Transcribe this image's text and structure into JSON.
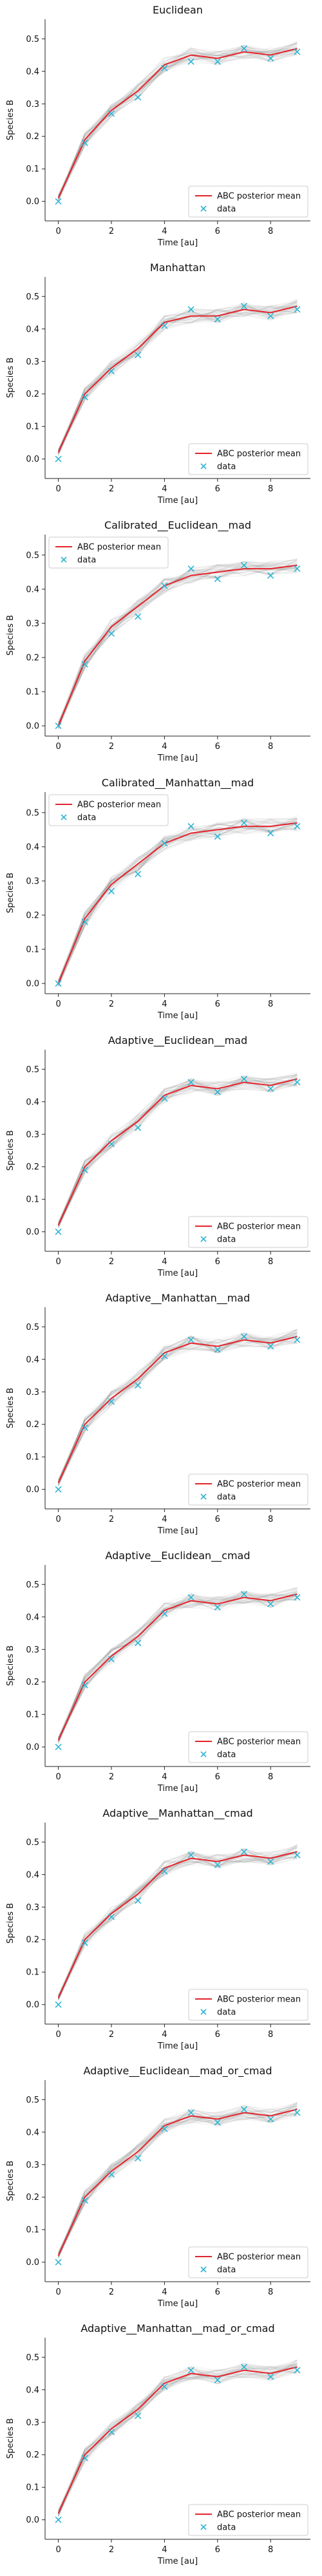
{
  "figure": {
    "background": "#ffffff"
  },
  "style": {
    "posterior_color": "#e3242b",
    "data_color": "#2bb5d3",
    "sample_color": "#808080",
    "axis_color": "#222222",
    "legend_border": "#cccccc"
  },
  "chart_data": [
    {
      "type": "line",
      "title": "Euclidean",
      "xlabel": "Time [au]",
      "ylabel": "Species B",
      "xlim": [
        -0.5,
        9.5
      ],
      "ylim": [
        -0.06,
        0.56
      ],
      "xticks": [
        0,
        2,
        4,
        6,
        8
      ],
      "yticks": [
        0.0,
        0.1,
        0.2,
        0.3,
        0.4,
        0.5
      ],
      "legend_loc": "bottom-right",
      "legend": [
        "ABC posterior mean",
        "data"
      ],
      "series": [
        {
          "name": "ABC posterior mean",
          "kind": "line",
          "x": [
            0,
            1,
            2,
            3,
            4,
            5,
            6,
            7,
            8,
            9
          ],
          "y": [
            0.01,
            0.19,
            0.28,
            0.34,
            0.42,
            0.45,
            0.44,
            0.46,
            0.45,
            0.47
          ]
        },
        {
          "name": "data",
          "kind": "marker",
          "x": [
            0,
            1,
            2,
            3,
            4,
            5,
            6,
            7,
            8,
            9
          ],
          "y": [
            0.0,
            0.18,
            0.27,
            0.32,
            0.41,
            0.43,
            0.43,
            0.47,
            0.44,
            0.46
          ]
        }
      ]
    },
    {
      "type": "line",
      "title": "Manhattan",
      "xlabel": "Time [au]",
      "ylabel": "Species B",
      "xlim": [
        -0.5,
        9.5
      ],
      "ylim": [
        -0.06,
        0.56
      ],
      "xticks": [
        0,
        2,
        4,
        6,
        8
      ],
      "yticks": [
        0.0,
        0.1,
        0.2,
        0.3,
        0.4,
        0.5
      ],
      "legend_loc": "bottom-right",
      "legend": [
        "ABC posterior mean",
        "data"
      ],
      "series": [
        {
          "name": "ABC posterior mean",
          "kind": "line",
          "x": [
            0,
            1,
            2,
            3,
            4,
            5,
            6,
            7,
            8,
            9
          ],
          "y": [
            0.02,
            0.2,
            0.28,
            0.34,
            0.42,
            0.44,
            0.44,
            0.46,
            0.45,
            0.47
          ]
        },
        {
          "name": "data",
          "kind": "marker",
          "x": [
            0,
            1,
            2,
            3,
            4,
            5,
            6,
            7,
            8,
            9
          ],
          "y": [
            0.0,
            0.19,
            0.27,
            0.32,
            0.41,
            0.46,
            0.43,
            0.47,
            0.44,
            0.46
          ]
        }
      ]
    },
    {
      "type": "line",
      "title": "Calibrated__Euclidean__mad",
      "xlabel": "Time [au]",
      "ylabel": "Species B",
      "xlim": [
        -0.5,
        9.5
      ],
      "ylim": [
        -0.03,
        0.56
      ],
      "xticks": [
        0,
        2,
        4,
        6,
        8
      ],
      "yticks": [
        0.0,
        0.1,
        0.2,
        0.3,
        0.4,
        0.5
      ],
      "legend_loc": "top-left",
      "legend": [
        "ABC posterior mean",
        "data"
      ],
      "series": [
        {
          "name": "ABC posterior mean",
          "kind": "line",
          "x": [
            0,
            1,
            2,
            3,
            4,
            5,
            6,
            7,
            8,
            9
          ],
          "y": [
            0.0,
            0.19,
            0.29,
            0.35,
            0.41,
            0.44,
            0.45,
            0.46,
            0.46,
            0.47
          ]
        },
        {
          "name": "data",
          "kind": "marker",
          "x": [
            0,
            1,
            2,
            3,
            4,
            5,
            6,
            7,
            8,
            9
          ],
          "y": [
            0.0,
            0.18,
            0.27,
            0.32,
            0.41,
            0.46,
            0.43,
            0.47,
            0.44,
            0.46
          ]
        }
      ]
    },
    {
      "type": "line",
      "title": "Calibrated__Manhattan__mad",
      "xlabel": "Time [au]",
      "ylabel": "Species B",
      "xlim": [
        -0.5,
        9.5
      ],
      "ylim": [
        -0.03,
        0.56
      ],
      "xticks": [
        0,
        2,
        4,
        6,
        8
      ],
      "yticks": [
        0.0,
        0.1,
        0.2,
        0.3,
        0.4,
        0.5
      ],
      "legend_loc": "top-left",
      "legend": [
        "ABC posterior mean",
        "data"
      ],
      "series": [
        {
          "name": "ABC posterior mean",
          "kind": "line",
          "x": [
            0,
            1,
            2,
            3,
            4,
            5,
            6,
            7,
            8,
            9
          ],
          "y": [
            0.0,
            0.19,
            0.29,
            0.35,
            0.41,
            0.44,
            0.45,
            0.46,
            0.46,
            0.47
          ]
        },
        {
          "name": "data",
          "kind": "marker",
          "x": [
            0,
            1,
            2,
            3,
            4,
            5,
            6,
            7,
            8,
            9
          ],
          "y": [
            0.0,
            0.18,
            0.27,
            0.32,
            0.41,
            0.46,
            0.43,
            0.47,
            0.44,
            0.46
          ]
        }
      ]
    },
    {
      "type": "line",
      "title": "Adaptive__Euclidean__mad",
      "xlabel": "Time [au]",
      "ylabel": "Species B",
      "xlim": [
        -0.5,
        9.5
      ],
      "ylim": [
        -0.06,
        0.56
      ],
      "xticks": [
        0,
        2,
        4,
        6,
        8
      ],
      "yticks": [
        0.0,
        0.1,
        0.2,
        0.3,
        0.4,
        0.5
      ],
      "legend_loc": "bottom-right",
      "legend": [
        "ABC posterior mean",
        "data"
      ],
      "series": [
        {
          "name": "ABC posterior mean",
          "kind": "line",
          "x": [
            0,
            1,
            2,
            3,
            4,
            5,
            6,
            7,
            8,
            9
          ],
          "y": [
            0.02,
            0.2,
            0.28,
            0.34,
            0.42,
            0.45,
            0.44,
            0.46,
            0.45,
            0.47
          ]
        },
        {
          "name": "data",
          "kind": "marker",
          "x": [
            0,
            1,
            2,
            3,
            4,
            5,
            6,
            7,
            8,
            9
          ],
          "y": [
            0.0,
            0.19,
            0.27,
            0.32,
            0.41,
            0.46,
            0.43,
            0.47,
            0.44,
            0.46
          ]
        }
      ]
    },
    {
      "type": "line",
      "title": "Adaptive__Manhattan__mad",
      "xlabel": "Time [au]",
      "ylabel": "Species B",
      "xlim": [
        -0.5,
        9.5
      ],
      "ylim": [
        -0.06,
        0.56
      ],
      "xticks": [
        0,
        2,
        4,
        6,
        8
      ],
      "yticks": [
        0.0,
        0.1,
        0.2,
        0.3,
        0.4,
        0.5
      ],
      "legend_loc": "bottom-right",
      "legend": [
        "ABC posterior mean",
        "data"
      ],
      "series": [
        {
          "name": "ABC posterior mean",
          "kind": "line",
          "x": [
            0,
            1,
            2,
            3,
            4,
            5,
            6,
            7,
            8,
            9
          ],
          "y": [
            0.02,
            0.2,
            0.28,
            0.34,
            0.42,
            0.45,
            0.44,
            0.46,
            0.45,
            0.47
          ]
        },
        {
          "name": "data",
          "kind": "marker",
          "x": [
            0,
            1,
            2,
            3,
            4,
            5,
            6,
            7,
            8,
            9
          ],
          "y": [
            0.0,
            0.19,
            0.27,
            0.32,
            0.41,
            0.46,
            0.43,
            0.47,
            0.44,
            0.46
          ]
        }
      ]
    },
    {
      "type": "line",
      "title": "Adaptive__Euclidean__cmad",
      "xlabel": "Time [au]",
      "ylabel": "Species B",
      "xlim": [
        -0.5,
        9.5
      ],
      "ylim": [
        -0.06,
        0.56
      ],
      "xticks": [
        0,
        2,
        4,
        6,
        8
      ],
      "yticks": [
        0.0,
        0.1,
        0.2,
        0.3,
        0.4,
        0.5
      ],
      "legend_loc": "bottom-right",
      "legend": [
        "ABC posterior mean",
        "data"
      ],
      "series": [
        {
          "name": "ABC posterior mean",
          "kind": "line",
          "x": [
            0,
            1,
            2,
            3,
            4,
            5,
            6,
            7,
            8,
            9
          ],
          "y": [
            0.02,
            0.2,
            0.28,
            0.34,
            0.42,
            0.45,
            0.44,
            0.46,
            0.45,
            0.47
          ]
        },
        {
          "name": "data",
          "kind": "marker",
          "x": [
            0,
            1,
            2,
            3,
            4,
            5,
            6,
            7,
            8,
            9
          ],
          "y": [
            0.0,
            0.19,
            0.27,
            0.32,
            0.41,
            0.46,
            0.43,
            0.47,
            0.44,
            0.46
          ]
        }
      ]
    },
    {
      "type": "line",
      "title": "Adaptive__Manhattan__cmad",
      "xlabel": "Time [au]",
      "ylabel": "Species B",
      "xlim": [
        -0.5,
        9.5
      ],
      "ylim": [
        -0.06,
        0.56
      ],
      "xticks": [
        0,
        2,
        4,
        6,
        8
      ],
      "yticks": [
        0.0,
        0.1,
        0.2,
        0.3,
        0.4,
        0.5
      ],
      "legend_loc": "bottom-right",
      "legend": [
        "ABC posterior mean",
        "data"
      ],
      "series": [
        {
          "name": "ABC posterior mean",
          "kind": "line",
          "x": [
            0,
            1,
            2,
            3,
            4,
            5,
            6,
            7,
            8,
            9
          ],
          "y": [
            0.02,
            0.2,
            0.28,
            0.34,
            0.42,
            0.45,
            0.44,
            0.46,
            0.45,
            0.47
          ]
        },
        {
          "name": "data",
          "kind": "marker",
          "x": [
            0,
            1,
            2,
            3,
            4,
            5,
            6,
            7,
            8,
            9
          ],
          "y": [
            0.0,
            0.19,
            0.27,
            0.32,
            0.41,
            0.46,
            0.43,
            0.47,
            0.44,
            0.46
          ]
        }
      ]
    },
    {
      "type": "line",
      "title": "Adaptive__Euclidean__mad_or_cmad",
      "xlabel": "Time [au]",
      "ylabel": "Species B",
      "xlim": [
        -0.5,
        9.5
      ],
      "ylim": [
        -0.06,
        0.56
      ],
      "xticks": [
        0,
        2,
        4,
        6,
        8
      ],
      "yticks": [
        0.0,
        0.1,
        0.2,
        0.3,
        0.4,
        0.5
      ],
      "legend_loc": "bottom-right",
      "legend": [
        "ABC posterior mean",
        "data"
      ],
      "series": [
        {
          "name": "ABC posterior mean",
          "kind": "line",
          "x": [
            0,
            1,
            2,
            3,
            4,
            5,
            6,
            7,
            8,
            9
          ],
          "y": [
            0.02,
            0.2,
            0.28,
            0.34,
            0.42,
            0.45,
            0.44,
            0.46,
            0.45,
            0.47
          ]
        },
        {
          "name": "data",
          "kind": "marker",
          "x": [
            0,
            1,
            2,
            3,
            4,
            5,
            6,
            7,
            8,
            9
          ],
          "y": [
            0.0,
            0.19,
            0.27,
            0.32,
            0.41,
            0.46,
            0.43,
            0.47,
            0.44,
            0.46
          ]
        }
      ]
    },
    {
      "type": "line",
      "title": "Adaptive__Manhattan__mad_or_cmad",
      "xlabel": "Time [au]",
      "ylabel": "Species B",
      "xlim": [
        -0.5,
        9.5
      ],
      "ylim": [
        -0.06,
        0.56
      ],
      "xticks": [
        0,
        2,
        4,
        6,
        8
      ],
      "yticks": [
        0.0,
        0.1,
        0.2,
        0.3,
        0.4,
        0.5
      ],
      "legend_loc": "bottom-right",
      "legend": [
        "ABC posterior mean",
        "data"
      ],
      "series": [
        {
          "name": "ABC posterior mean",
          "kind": "line",
          "x": [
            0,
            1,
            2,
            3,
            4,
            5,
            6,
            7,
            8,
            9
          ],
          "y": [
            0.02,
            0.2,
            0.28,
            0.34,
            0.42,
            0.45,
            0.44,
            0.46,
            0.45,
            0.47
          ]
        },
        {
          "name": "data",
          "kind": "marker",
          "x": [
            0,
            1,
            2,
            3,
            4,
            5,
            6,
            7,
            8,
            9
          ],
          "y": [
            0.0,
            0.19,
            0.27,
            0.32,
            0.41,
            0.46,
            0.43,
            0.47,
            0.44,
            0.46
          ]
        }
      ]
    }
  ]
}
